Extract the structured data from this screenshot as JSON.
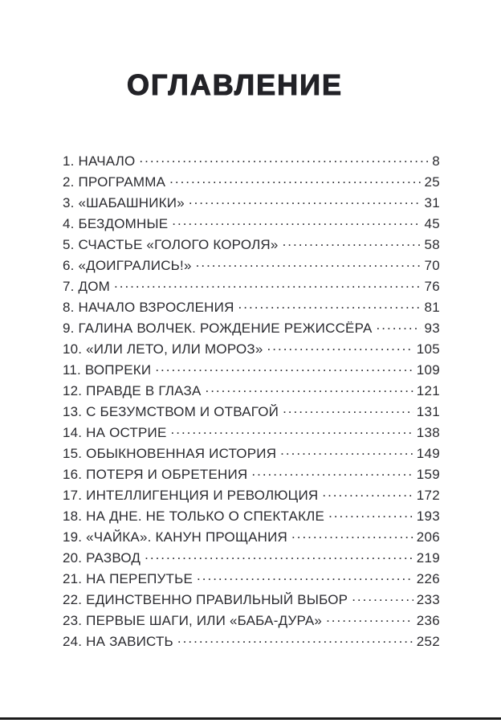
{
  "page": {
    "title": "ОГЛАВЛЕНИЕ"
  },
  "colors": {
    "text": "#2b2b30",
    "title": "#222227",
    "edge_line": "#1b1b1b",
    "background": "#ffffff"
  },
  "toc": {
    "entries": [
      {
        "num": "1.",
        "title": "НАЧАЛО",
        "page": "8"
      },
      {
        "num": "2.",
        "title": "ПРОГРАММА",
        "page": "25"
      },
      {
        "num": "3.",
        "title": "«ШАБАШНИКИ»",
        "page": "31"
      },
      {
        "num": "4.",
        "title": "БЕЗДОМНЫЕ",
        "page": "45"
      },
      {
        "num": "5.",
        "title": "СЧАСТЬЕ «ГОЛОГО КОРОЛЯ»",
        "page": "58"
      },
      {
        "num": "6.",
        "title": "«ДОИГРАЛИСЬ!»",
        "page": "70"
      },
      {
        "num": "7.",
        "title": "ДОМ",
        "page": "76"
      },
      {
        "num": "8.",
        "title": "НАЧАЛО ВЗРОСЛЕНИЯ",
        "page": "81"
      },
      {
        "num": "9.",
        "title": "ГАЛИНА ВОЛЧЕК. РОЖДЕНИЕ РЕЖИССЁРА",
        "page": "93"
      },
      {
        "num": "10.",
        "title": "«ИЛИ ЛЕТО, ИЛИ МОРОЗ»",
        "page": "105"
      },
      {
        "num": "11.",
        "title": "ВОПРЕКИ",
        "page": "109"
      },
      {
        "num": "12.",
        "title": "ПРАВДЕ В ГЛАЗА",
        "page": "121"
      },
      {
        "num": "13.",
        "title": "С БЕЗУМСТВОМ И ОТВАГОЙ",
        "page": "131"
      },
      {
        "num": "14.",
        "title": "НА ОСТРИЕ",
        "page": "138"
      },
      {
        "num": "15.",
        "title": "ОБЫКНОВЕННАЯ ИСТОРИЯ",
        "page": "149"
      },
      {
        "num": "16.",
        "title": "ПОТЕРЯ И ОБРЕТЕНИЯ",
        "page": "159"
      },
      {
        "num": "17.",
        "title": "ИНТЕЛЛИГЕНЦИЯ И РЕВОЛЮЦИЯ",
        "page": "172"
      },
      {
        "num": "18.",
        "title": "НА ДНЕ. НЕ ТОЛЬКО О СПЕКТАКЛЕ",
        "page": "193"
      },
      {
        "num": "19.",
        "title": "«ЧАЙКА». КАНУН ПРОЩАНИЯ",
        "page": "206"
      },
      {
        "num": "20.",
        "title": "РАЗВОД",
        "page": "219"
      },
      {
        "num": "21.",
        "title": "НА ПЕРЕПУТЬЕ",
        "page": "226"
      },
      {
        "num": "22.",
        "title": "ЕДИНСТВЕННО ПРАВИЛЬНЫЙ ВЫБОР",
        "page": "233"
      },
      {
        "num": "23.",
        "title": "ПЕРВЫЕ ШАГИ, ИЛИ «БАБА-ДУРА»",
        "page": "236"
      },
      {
        "num": "24.",
        "title": "НА ЗАВИСТЬ",
        "page": "252"
      }
    ]
  }
}
